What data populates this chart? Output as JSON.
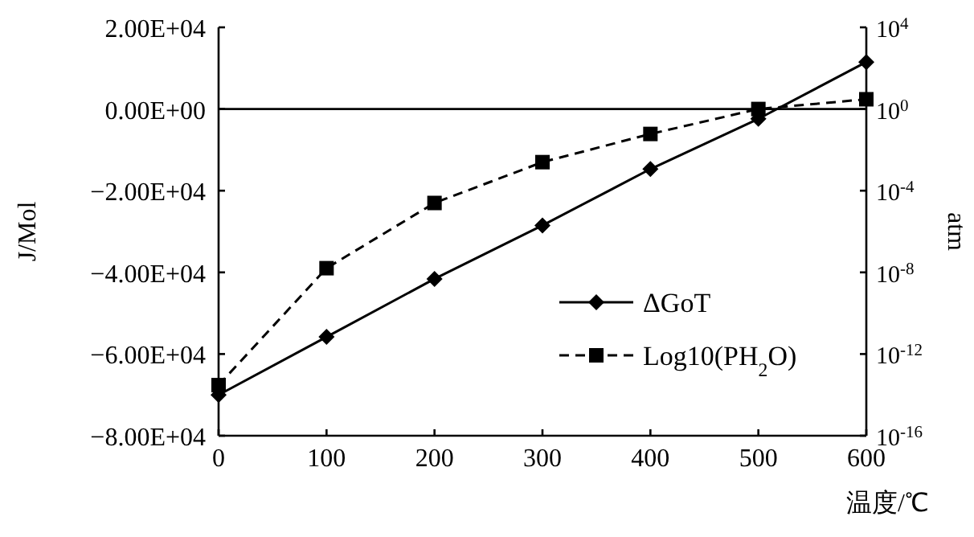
{
  "chart_data": {
    "type": "line",
    "xlabel": "温度/℃",
    "ylabel": "J/Mol",
    "y2label": "atm",
    "x": [
      0,
      100,
      200,
      300,
      400,
      500,
      600
    ],
    "series": [
      {
        "name": "ΔGoT",
        "color": "#000000",
        "marker": "diamond",
        "line_style": "solid",
        "values": [
          -70000,
          -55800,
          -41600,
          -28500,
          -14700,
          -2400,
          11500
        ]
      },
      {
        "name": "Log10(PH$_{2}$O)",
        "color": "#000000",
        "marker": "square",
        "line_style": "dashed",
        "axis": "y2",
        "values": [
          3e-14,
          1.6e-08,
          2.5e-05,
          0.0025,
          0.06,
          1,
          3
        ]
      }
    ],
    "xlim": [
      0,
      600
    ],
    "xticks": [
      0,
      100,
      200,
      300,
      400,
      500,
      600
    ],
    "ylim": [
      -80000,
      20000
    ],
    "yticks": [
      {
        "value": 20000,
        "label": "2.00E+04"
      },
      {
        "value": 0,
        "label": "0.00E+00"
      },
      {
        "value": -20000,
        "label": "−2.00E+04"
      },
      {
        "value": -40000,
        "label": "−4.00E+04"
      },
      {
        "value": -60000,
        "label": "−6.00E+04"
      },
      {
        "value": -80000,
        "label": "−8.00E+04"
      }
    ],
    "y2lim": [
      1e-16,
      10000.0
    ],
    "y2ticks": [
      {
        "value": 10000.0,
        "label": "10$^{4}$"
      },
      {
        "value": 1,
        "label": "10$^{0}$"
      },
      {
        "value": 0.0001,
        "label": "10$^{-4}$"
      },
      {
        "value": 1e-08,
        "label": "10$^{-8}$"
      },
      {
        "value": 1e-12,
        "label": "10$^{-12}$"
      },
      {
        "value": 1e-16,
        "label": "10$^{-16}$"
      }
    ],
    "log": "y2",
    "grid": false,
    "legend": "right",
    "ref_lines": [
      {
        "axis": "y",
        "value": 0,
        "color": "#000000"
      }
    ]
  }
}
